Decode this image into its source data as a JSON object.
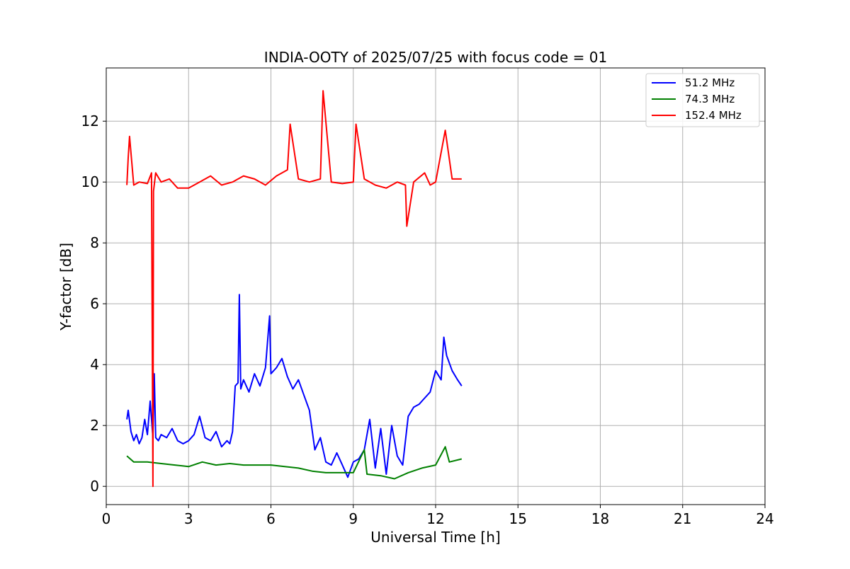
{
  "chart_data": {
    "type": "line",
    "title": "INDIA-OOTY of 2025/07/25 with focus code = 01",
    "xlabel": "Universal Time [h]",
    "ylabel": "Y-factor [dB]",
    "xlim": [
      0,
      24
    ],
    "ylim": [
      -0.6,
      13.75
    ],
    "xticks": [
      0,
      3,
      6,
      9,
      12,
      15,
      18,
      21,
      24
    ],
    "yticks": [
      0,
      2,
      4,
      6,
      8,
      10,
      12
    ],
    "grid": true,
    "legend_position": "top-right",
    "series": [
      {
        "name": "  51.2 MHz",
        "color": "#0000ff",
        "x": [
          0.75,
          0.8,
          0.9,
          1.0,
          1.1,
          1.2,
          1.3,
          1.4,
          1.5,
          1.6,
          1.7,
          1.75,
          1.8,
          1.9,
          2.0,
          2.2,
          2.4,
          2.6,
          2.8,
          3.0,
          3.2,
          3.4,
          3.6,
          3.8,
          4.0,
          4.2,
          4.4,
          4.5,
          4.6,
          4.7,
          4.8,
          4.85,
          4.9,
          5.0,
          5.2,
          5.4,
          5.6,
          5.8,
          5.95,
          6.0,
          6.2,
          6.4,
          6.6,
          6.8,
          7.0,
          7.2,
          7.4,
          7.6,
          7.8,
          8.0,
          8.2,
          8.4,
          8.6,
          8.8,
          9.0,
          9.2,
          9.4,
          9.6,
          9.8,
          10.0,
          10.2,
          10.4,
          10.6,
          10.8,
          11.0,
          11.2,
          11.4,
          11.6,
          11.8,
          12.0,
          12.2,
          12.3,
          12.4,
          12.6,
          12.8,
          12.95
        ],
        "y": [
          2.2,
          2.5,
          1.8,
          1.5,
          1.7,
          1.4,
          1.6,
          2.2,
          1.7,
          2.8,
          1.6,
          3.7,
          1.6,
          1.5,
          1.7,
          1.6,
          1.9,
          1.5,
          1.4,
          1.5,
          1.7,
          2.3,
          1.6,
          1.5,
          1.8,
          1.3,
          1.5,
          1.4,
          1.8,
          3.3,
          3.4,
          6.3,
          3.2,
          3.5,
          3.1,
          3.7,
          3.3,
          3.9,
          5.6,
          3.7,
          3.9,
          4.2,
          3.6,
          3.2,
          3.5,
          3.0,
          2.5,
          1.2,
          1.6,
          0.8,
          0.7,
          1.1,
          0.7,
          0.3,
          0.8,
          0.9,
          1.2,
          2.2,
          0.6,
          1.9,
          0.4,
          2.0,
          1.0,
          0.7,
          2.3,
          2.6,
          2.7,
          2.9,
          3.1,
          3.8,
          3.5,
          4.9,
          4.3,
          3.8,
          3.5,
          3.3
        ]
      },
      {
        "name": "  74.3 MHz",
        "color": "#008000",
        "x": [
          0.75,
          1.0,
          1.5,
          2.0,
          2.5,
          3.0,
          3.5,
          4.0,
          4.5,
          5.0,
          5.5,
          6.0,
          6.5,
          7.0,
          7.5,
          8.0,
          8.5,
          9.0,
          9.4,
          9.5,
          10.0,
          10.5,
          11.0,
          11.5,
          12.0,
          12.35,
          12.5,
          12.95
        ],
        "y": [
          1.0,
          0.8,
          0.8,
          0.75,
          0.7,
          0.65,
          0.8,
          0.7,
          0.75,
          0.7,
          0.7,
          0.7,
          0.65,
          0.6,
          0.5,
          0.45,
          0.45,
          0.45,
          1.2,
          0.4,
          0.35,
          0.25,
          0.45,
          0.6,
          0.7,
          1.3,
          0.8,
          0.9
        ]
      },
      {
        "name": "  152.4 MHz",
        "color": "#ff0000",
        "x": [
          0.75,
          0.8,
          0.85,
          1.0,
          1.2,
          1.5,
          1.65,
          1.7,
          1.72,
          1.8,
          2.0,
          2.3,
          2.6,
          3.0,
          3.4,
          3.8,
          4.2,
          4.6,
          5.0,
          5.4,
          5.8,
          6.2,
          6.6,
          6.7,
          7.0,
          7.4,
          7.8,
          7.9,
          8.2,
          8.6,
          9.0,
          9.1,
          9.4,
          9.8,
          10.2,
          10.6,
          10.9,
          10.95,
          11.2,
          11.6,
          11.8,
          12.0,
          12.35,
          12.6,
          12.95
        ],
        "y": [
          9.9,
          10.8,
          11.5,
          9.9,
          10.0,
          9.95,
          10.3,
          0.0,
          9.7,
          10.3,
          10.0,
          10.1,
          9.8,
          9.8,
          10.0,
          10.2,
          9.9,
          10.0,
          10.2,
          10.1,
          9.9,
          10.2,
          10.4,
          11.9,
          10.1,
          10.0,
          10.1,
          13.0,
          10.0,
          9.95,
          10.0,
          11.9,
          10.1,
          9.9,
          9.8,
          10.0,
          9.9,
          8.55,
          10.0,
          10.3,
          9.9,
          10.0,
          11.7,
          10.1,
          10.1
        ]
      }
    ]
  }
}
